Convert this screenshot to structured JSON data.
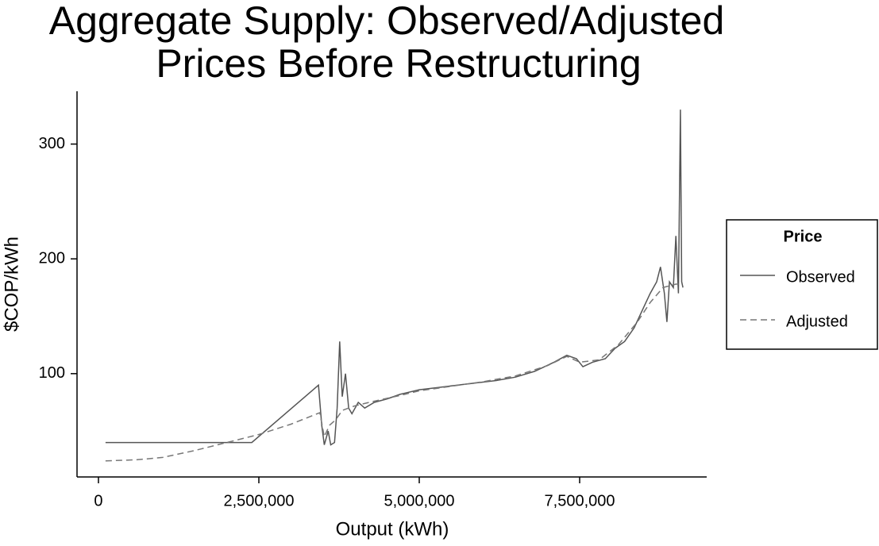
{
  "chart_data": {
    "type": "line",
    "title": [
      "Aggregate Supply: Observed/Adjusted",
      "Prices Before Restructuring"
    ],
    "x_label": "Output (kWh)",
    "y_label": "$COP/kWh",
    "legend_title": "Price",
    "legend": "right",
    "xlim": [
      -334000,
      9480000
    ],
    "xticks": [
      0,
      {
        "value": 2500000,
        "label": "2,500,000"
      },
      {
        "value": 5000000,
        "label": "5,000,000"
      },
      {
        "value": 7500000,
        "label": "7,500,000"
      }
    ],
    "ylim": [
      10,
      346
    ],
    "yticks": [
      100,
      200,
      300
    ],
    "series": [
      {
        "name": "Observed",
        "color": "#555555",
        "line_style": "solid",
        "x": [
          110000,
          2390000,
          3430000,
          3480000,
          3520000,
          3580000,
          3620000,
          3680000,
          3720000,
          3760000,
          3800000,
          3850000,
          3900000,
          3950000,
          4050000,
          4150000,
          4300000,
          4500000,
          4700000,
          5000000,
          5300000,
          5600000,
          5900000,
          6200000,
          6500000,
          6800000,
          7100000,
          7300000,
          7450000,
          7550000,
          7700000,
          7900000,
          8050000,
          8200000,
          8350000,
          8500000,
          8600000,
          8700000,
          8760000,
          8820000,
          8860000,
          8900000,
          8960000,
          9000000,
          9040000,
          9070000,
          9090000,
          9110000
        ],
        "values": [
          40,
          40,
          90,
          55,
          38,
          50,
          38,
          40,
          70,
          128,
          80,
          100,
          70,
          65,
          75,
          70,
          75,
          78,
          82,
          86,
          88,
          90,
          92,
          94,
          97,
          102,
          110,
          116,
          113,
          106,
          110,
          113,
          122,
          128,
          140,
          158,
          170,
          180,
          193,
          170,
          145,
          180,
          175,
          220,
          170,
          330,
          180,
          175
        ]
      },
      {
        "name": "Adjusted",
        "color": "#777777",
        "line_style": "dashed",
        "x": [
          110000,
          600000,
          1000000,
          1500000,
          2000000,
          2500000,
          3000000,
          3450000,
          3520000,
          3600000,
          3700000,
          3800000,
          4000000,
          4300000,
          4700000,
          5000000,
          5500000,
          6000000,
          6500000,
          7000000,
          7300000,
          7500000,
          7800000,
          8100000,
          8400000,
          8600000,
          8800000,
          9000000,
          9100000
        ],
        "values": [
          24,
          25,
          27,
          33,
          40,
          47,
          56,
          66,
          45,
          55,
          60,
          68,
          72,
          76,
          81,
          85,
          89,
          93,
          98,
          107,
          115,
          110,
          112,
          125,
          145,
          162,
          175,
          178,
          178
        ]
      }
    ]
  }
}
